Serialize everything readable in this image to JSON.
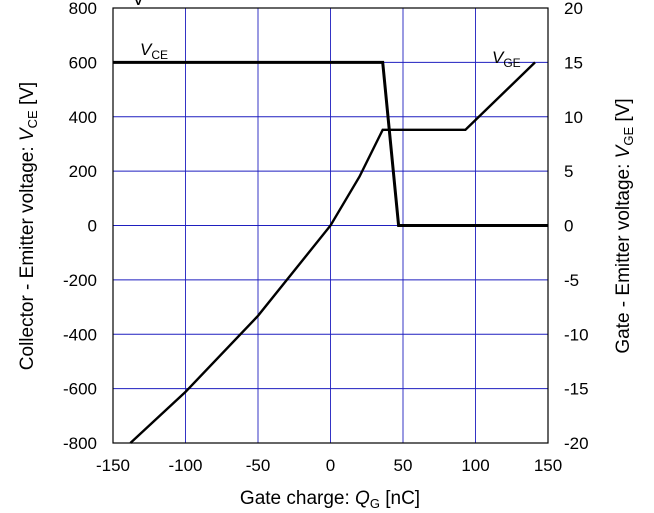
{
  "chart_data": {
    "type": "line",
    "title": "V",
    "x_axis": {
      "label_prefix": "Gate charge: ",
      "label_symbol": "Q",
      "label_sub": "G",
      "label_suffix": " [nC]",
      "range": [
        -150,
        150
      ],
      "ticks": [
        "-150",
        "-100",
        "-50",
        "0",
        "50",
        "100",
        "150"
      ]
    },
    "y_left": {
      "label_prefix": "Collector - Emitter voltage: ",
      "label_symbol": "V",
      "label_sub": "CE",
      "label_suffix": " [V]",
      "range": [
        -800,
        800
      ],
      "ticks": [
        "-800",
        "-600",
        "-400",
        "-200",
        "0",
        "200",
        "400",
        "600",
        "800"
      ]
    },
    "y_right": {
      "label_prefix": "Gate - Emitter voltage: ",
      "label_symbol": "V",
      "label_sub": "GE",
      "label_suffix": " [V]",
      "range": [
        -20,
        20
      ],
      "ticks": [
        "-20",
        "-15",
        "-10",
        "-5",
        "0",
        "5",
        "10",
        "15",
        "20"
      ]
    },
    "grid": true,
    "series": [
      {
        "name_symbol": "V",
        "name_sub": "CE",
        "axis": "left",
        "color": "#000000",
        "x": [
          -150,
          36,
          47,
          150
        ],
        "y": [
          600,
          600,
          0,
          0
        ]
      },
      {
        "name_symbol": "V",
        "name_sub": "GE",
        "axis": "right",
        "color": "#000000",
        "x": [
          -138,
          -100,
          -50,
          0,
          20,
          36,
          93,
          141
        ],
        "y": [
          -20,
          -15.3,
          -8.3,
          0,
          4.5,
          8.8,
          8.8,
          15
        ]
      }
    ],
    "grid_color": "#1f1fbf"
  }
}
